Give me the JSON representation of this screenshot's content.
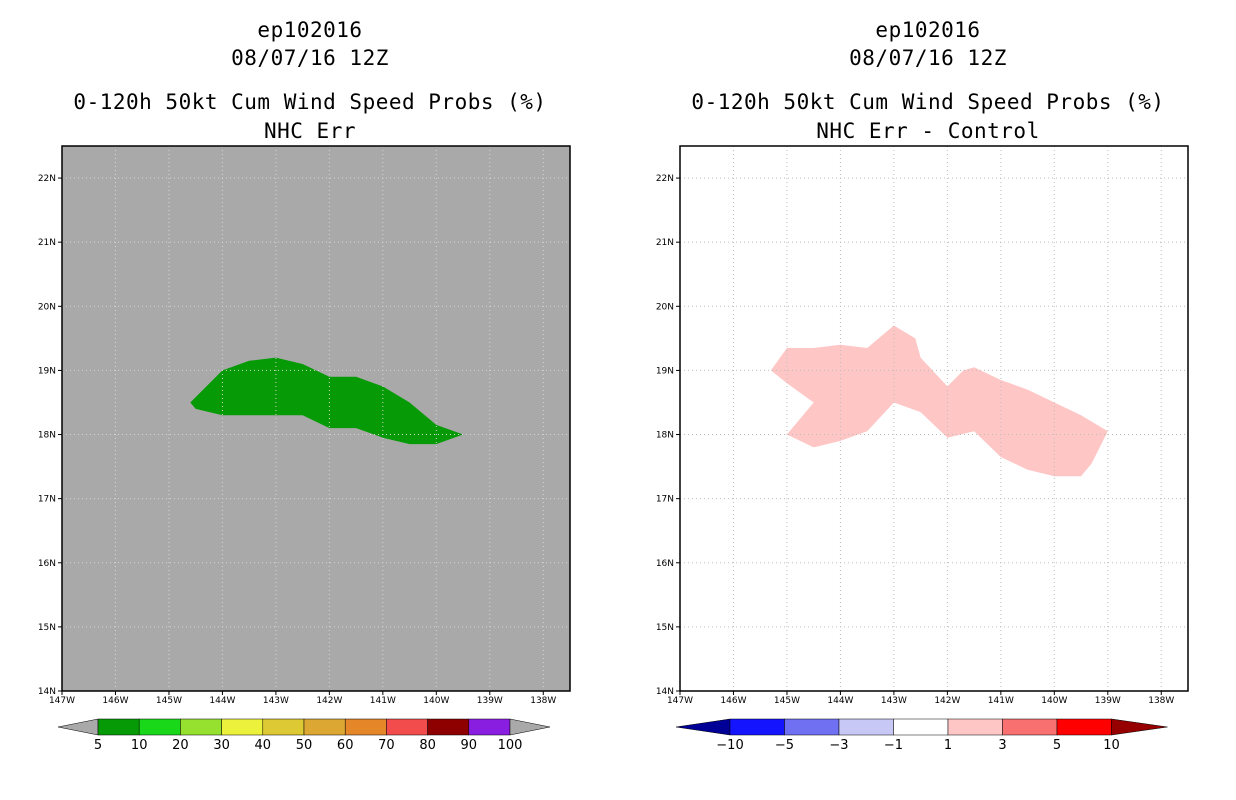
{
  "colors": {
    "panel1_bg": "#a9a9a9",
    "panel1_fill": "#079a07",
    "panel2_bg": "#ffffff",
    "panel2_fill": "#ffc6c6",
    "grid": "#bdbdbd"
  },
  "chart_data": [
    {
      "type": "heatmap",
      "title_lines": [
        "ep102016",
        "08/07/16 12Z",
        "0-120h 50kt Cum Wind Speed Probs (%)",
        "NHC Err"
      ],
      "x_axis": {
        "range_lon_west": [
          147,
          137.5
        ],
        "tick_values": [
          147,
          146,
          145,
          144,
          143,
          142,
          141,
          140,
          139,
          138
        ],
        "tick_labels": [
          "147W",
          "146W",
          "145W",
          "144W",
          "143W",
          "142W",
          "141W",
          "140W",
          "139W",
          "138W"
        ]
      },
      "y_axis": {
        "range_lat_north": [
          14,
          22.5
        ],
        "tick_values": [
          14,
          15,
          16,
          17,
          18,
          19,
          20,
          21,
          22
        ],
        "tick_labels": [
          "14N",
          "15N",
          "16N",
          "17N",
          "18N",
          "19N",
          "20N",
          "21N",
          "22N"
        ]
      },
      "region_5_10_percent": [
        [
          144.6,
          18.5
        ],
        [
          144.0,
          19.0
        ],
        [
          143.5,
          19.15
        ],
        [
          143.0,
          19.2
        ],
        [
          142.5,
          19.1
        ],
        [
          142.0,
          18.9
        ],
        [
          141.5,
          18.9
        ],
        [
          141.0,
          18.75
        ],
        [
          140.5,
          18.5
        ],
        [
          140.0,
          18.15
        ],
        [
          139.5,
          18.0
        ],
        [
          140.0,
          17.85
        ],
        [
          140.5,
          17.85
        ],
        [
          141.0,
          17.95
        ],
        [
          141.5,
          18.1
        ],
        [
          142.0,
          18.1
        ],
        [
          142.5,
          18.3
        ],
        [
          143.0,
          18.3
        ],
        [
          144.0,
          18.3
        ],
        [
          144.5,
          18.4
        ]
      ],
      "colorbar": {
        "labels": [
          "5",
          "10",
          "20",
          "30",
          "40",
          "50",
          "60",
          "70",
          "80",
          "90",
          "100"
        ],
        "colors": [
          "#079a07",
          "#19d81a",
          "#96e12f",
          "#ecf23b",
          "#dcc933",
          "#dca833",
          "#e58628",
          "#f24c4c",
          "#8e0000",
          "#8a1ee0"
        ]
      }
    },
    {
      "type": "heatmap",
      "title_lines": [
        "ep102016",
        "08/07/16 12Z",
        "0-120h 50kt Cum Wind Speed Probs (%)",
        "NHC Err - Control"
      ],
      "x_axis": {
        "range_lon_west": [
          147,
          137.5
        ],
        "tick_values": [
          147,
          146,
          145,
          144,
          143,
          142,
          141,
          140,
          139,
          138
        ],
        "tick_labels": [
          "147W",
          "146W",
          "145W",
          "144W",
          "143W",
          "142W",
          "141W",
          "140W",
          "139W",
          "138W"
        ]
      },
      "y_axis": {
        "range_lat_north": [
          14,
          22.5
        ],
        "tick_values": [
          14,
          15,
          16,
          17,
          18,
          19,
          20,
          21,
          22
        ],
        "tick_labels": [
          "14N",
          "15N",
          "16N",
          "17N",
          "18N",
          "19N",
          "20N",
          "21N",
          "22N"
        ]
      },
      "region_1_3_diff": [
        [
          145.3,
          19.0
        ],
        [
          145.0,
          19.35
        ],
        [
          144.5,
          19.35
        ],
        [
          144.0,
          19.4
        ],
        [
          143.5,
          19.35
        ],
        [
          143.0,
          19.7
        ],
        [
          142.6,
          19.5
        ],
        [
          142.5,
          19.2
        ],
        [
          142.0,
          18.75
        ],
        [
          141.7,
          19.0
        ],
        [
          141.5,
          19.05
        ],
        [
          141.0,
          18.85
        ],
        [
          140.5,
          18.7
        ],
        [
          140.0,
          18.5
        ],
        [
          139.5,
          18.3
        ],
        [
          139.0,
          18.05
        ],
        [
          139.3,
          17.55
        ],
        [
          139.5,
          17.35
        ],
        [
          140.0,
          17.35
        ],
        [
          140.5,
          17.45
        ],
        [
          141.0,
          17.65
        ],
        [
          141.5,
          18.05
        ],
        [
          142.0,
          17.95
        ],
        [
          142.5,
          18.35
        ],
        [
          143.0,
          18.5
        ],
        [
          143.5,
          18.05
        ],
        [
          144.0,
          17.9
        ],
        [
          144.5,
          17.8
        ],
        [
          145.0,
          18.0
        ],
        [
          144.5,
          18.5
        ],
        [
          145.0,
          18.8
        ]
      ],
      "colorbar": {
        "labels": [
          "-10",
          "-5",
          "-3",
          "-1",
          "1",
          "3",
          "5",
          "10"
        ],
        "colors": [
          "#000096",
          "#1414ff",
          "#7070f2",
          "#c8c8f7",
          "#ffffff",
          "#ffc6c6",
          "#f87070",
          "#ff0000",
          "#960000"
        ]
      }
    }
  ]
}
